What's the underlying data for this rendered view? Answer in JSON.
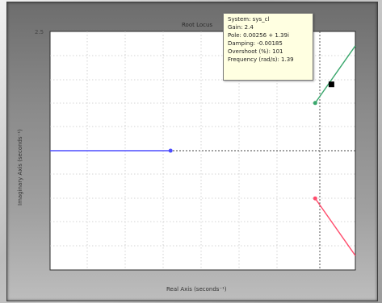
{
  "plot": {
    "title": "Root Locus",
    "xlabel": "Real Axis (seconds⁻¹)",
    "ylabel": "Imaginary Axis (seconds⁻¹)",
    "y_tick_top": "2.5"
  },
  "datatip": {
    "system": "System: sys_cl",
    "gain": "Gain: 2.4",
    "pole": "Pole: 0.00256 + 1.39i",
    "damping": "Damping: -0.00185",
    "overshoot": "Overshoot (%): 101",
    "frequency": "Frequency (rad/s): 1.39"
  },
  "colors": {
    "branch_blue": "#4d4dff",
    "branch_green": "#3aa76d",
    "branch_red": "#ff4d6d",
    "marker": "#000000"
  },
  "chart_data": {
    "type": "line",
    "title": "Root Locus",
    "xlabel": "Real Axis (seconds⁻¹)",
    "ylabel": "Imaginary Axis (seconds⁻¹)",
    "xlim": [
      -3.5,
      0.3
    ],
    "ylim": [
      -2.5,
      2.5
    ],
    "grid": true,
    "series": [
      {
        "x": [
          -3.5,
          -2.0
        ],
        "y": [
          0.0,
          0.0
        ]
      },
      {
        "x": [
          -0.2,
          0.3
        ],
        "y": [
          1.0,
          2.2
        ]
      },
      {
        "x": [
          -0.2,
          0.3
        ],
        "y": [
          -1.0,
          -2.2
        ]
      }
    ],
    "markers": [
      {
        "x": -2.0,
        "y": 0.0
      },
      {
        "x": -0.2,
        "y": 1.0
      },
      {
        "x": -0.2,
        "y": -1.0
      }
    ],
    "selected_point": {
      "x": 0.00256,
      "y": 1.39
    }
  }
}
